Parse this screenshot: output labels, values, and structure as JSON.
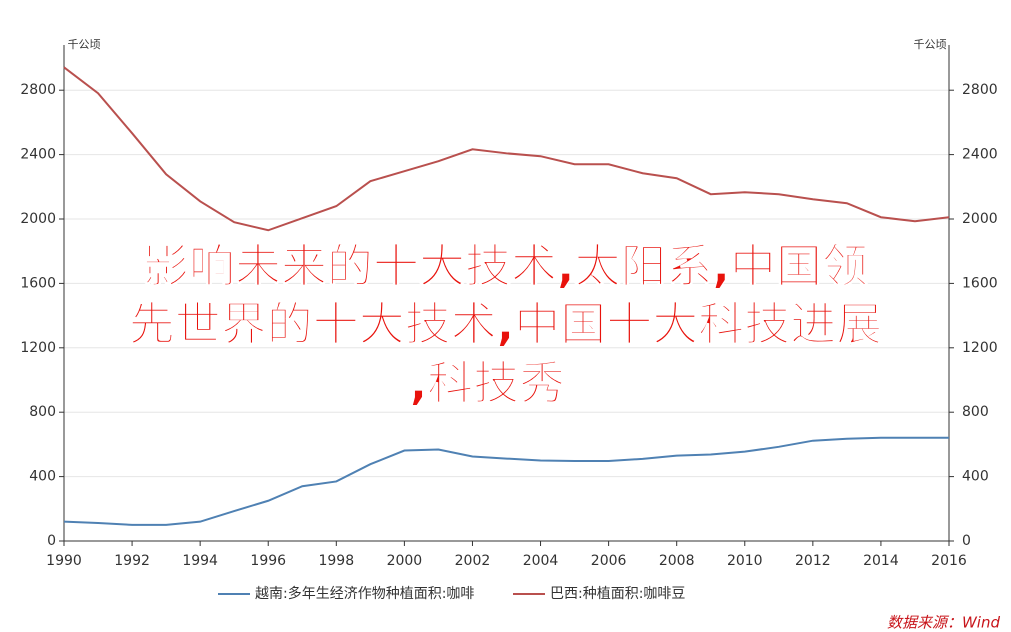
{
  "chart_data": {
    "type": "line",
    "y_axis_label": "千公顷",
    "y2_axis_label": "千公顷",
    "x": [
      1990,
      1991,
      1992,
      1993,
      1994,
      1995,
      1996,
      1997,
      1998,
      1999,
      2000,
      2001,
      2002,
      2003,
      2004,
      2005,
      2006,
      2007,
      2008,
      2009,
      2010,
      2011,
      2012,
      2013,
      2014,
      2015,
      2016
    ],
    "xlim": [
      1990,
      2016
    ],
    "xticks": [
      1990,
      1992,
      1994,
      1996,
      1998,
      2000,
      2002,
      2004,
      2006,
      2008,
      2010,
      2012,
      2014,
      2016
    ],
    "ylim": [
      0,
      3000
    ],
    "yticks": [
      0,
      400,
      800,
      1200,
      1600,
      2000,
      2400,
      2800
    ],
    "y2lim": [
      0,
      3000
    ],
    "y2ticks": [
      0,
      400,
      800,
      1200,
      1600,
      2000,
      2400,
      2800
    ],
    "grid": true,
    "legend": "bottom",
    "series": [
      {
        "name": "越南:多年生经济作物种植面积:咖啡",
        "color": "#4f81b3",
        "values": [
          120,
          112,
          100,
          100,
          120,
          186,
          250,
          340,
          370,
          477,
          562,
          568,
          525,
          512,
          500,
          497,
          497,
          510,
          530,
          537,
          555,
          585,
          623,
          635,
          641,
          641,
          641
        ]
      },
      {
        "name": "巴西:种植面积:咖啡豆",
        "color": "#b9504e",
        "values": [
          2942,
          2781,
          2533,
          2278,
          2110,
          1980,
          1930,
          2005,
          2080,
          2235,
          2297,
          2359,
          2433,
          2408,
          2390,
          2340,
          2340,
          2284,
          2253,
          2154,
          2166,
          2154,
          2123,
          2098,
          2011,
          1986,
          2011
        ]
      }
    ],
    "source": "数据来源：Wind",
    "overlay_text": [
      "影响未来的十大技术,太阳系,中国领",
      "先世界的十大技术,中国十大科技进展",
      ",科技秀"
    ]
  }
}
